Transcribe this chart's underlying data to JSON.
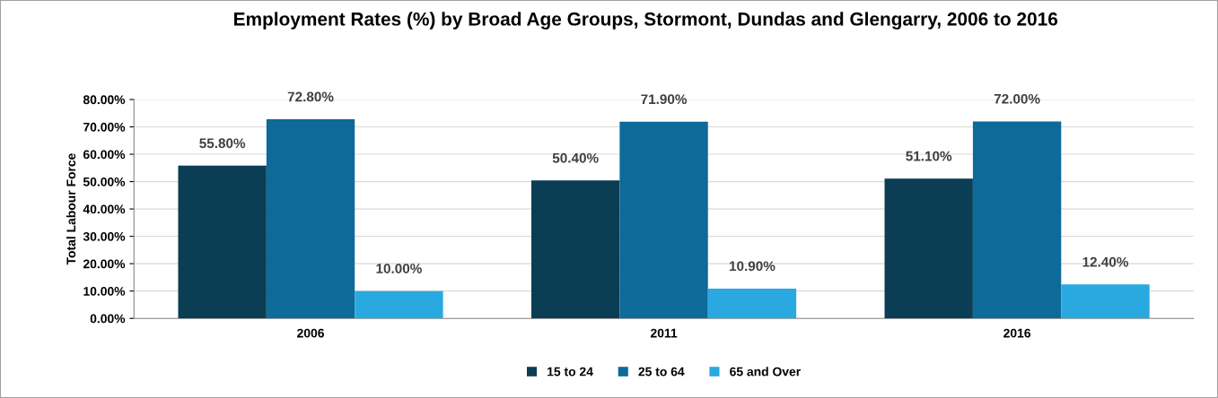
{
  "chart_data": {
    "type": "bar",
    "title": "Employment Rates (%) by Broad Age Groups, Stormont, Dundas and Glengarry, 2006 to 2016",
    "ylabel": "Total Labour Force",
    "categories": [
      "2006",
      "2011",
      "2016"
    ],
    "series": [
      {
        "name": "15 to 24",
        "color": "#0b3d55",
        "values": [
          55.8,
          50.4,
          51.1
        ],
        "value_labels": [
          "55.80%",
          "50.40%",
          "51.10%"
        ]
      },
      {
        "name": "25 to 64",
        "color": "#0e6a98",
        "values": [
          72.8,
          71.9,
          72.0
        ],
        "value_labels": [
          "72.80%",
          "71.90%",
          "72.00%"
        ]
      },
      {
        "name": "65 and Over",
        "color": "#29a9e0",
        "values": [
          10.0,
          10.9,
          12.4
        ],
        "value_labels": [
          "10.00%",
          "10.90%",
          "12.40%"
        ]
      }
    ],
    "ylim": [
      0,
      80
    ],
    "yticks": [
      {
        "value": 0,
        "label": "0.00%"
      },
      {
        "value": 10,
        "label": "10.00%"
      },
      {
        "value": 20,
        "label": "20.00%"
      },
      {
        "value": 30,
        "label": "30.00%"
      },
      {
        "value": 40,
        "label": "40.00%"
      },
      {
        "value": 50,
        "label": "50.00%"
      },
      {
        "value": 60,
        "label": "60.00%"
      },
      {
        "value": 70,
        "label": "70.00%"
      },
      {
        "value": 80,
        "label": "80.00%"
      }
    ],
    "grid": "y",
    "legend": "bottom"
  }
}
